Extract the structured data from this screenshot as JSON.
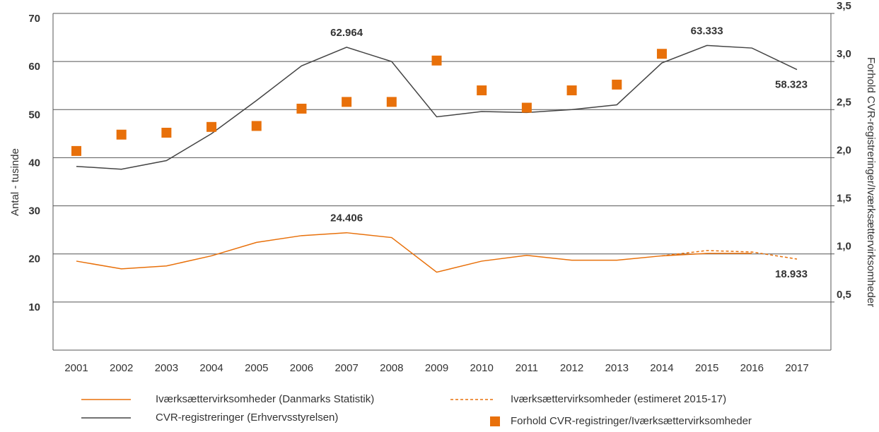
{
  "chart_data": {
    "type": "line",
    "categories": [
      "2001",
      "2002",
      "2003",
      "2004",
      "2005",
      "2006",
      "2007",
      "2008",
      "2009",
      "2010",
      "2011",
      "2012",
      "2013",
      "2014",
      "2015",
      "2016",
      "2017"
    ],
    "ylabel": "Antal - tusinde",
    "y2label": "Forhold CVR-registreringer/Iværksættervirksomheder",
    "ylim": [
      0,
      70
    ],
    "yticks": [
      10,
      20,
      30,
      40,
      50,
      60,
      70
    ],
    "y2lim": [
      0,
      3.5
    ],
    "y2ticks": [
      {
        "value": 0.5,
        "label": "0,5"
      },
      {
        "value": 1.0,
        "label": "1,0"
      },
      {
        "value": 1.5,
        "label": "1,5"
      },
      {
        "value": 2.0,
        "label": "2,0"
      },
      {
        "value": 2.5,
        "label": "2,5"
      },
      {
        "value": 3.0,
        "label": "3,0"
      },
      {
        "value": 3.5,
        "label": "3,5"
      }
    ],
    "grid": true,
    "series": [
      {
        "name": "Iværksættervirksomheder (Danmarks Statistik)",
        "color": "#e8700a",
        "style": "solid",
        "values": [
          18.5,
          16.9,
          17.5,
          19.6,
          22.4,
          23.8,
          24.406,
          23.4,
          16.2,
          18.5,
          19.7,
          18.7,
          18.7,
          19.6,
          20.1,
          20.1,
          null
        ],
        "value_labels": [
          null,
          null,
          null,
          null,
          null,
          null,
          "24.406",
          null,
          null,
          null,
          null,
          null,
          null,
          null,
          null,
          null,
          null
        ]
      },
      {
        "name": "CVR-registreringer (Erhvervsstyrelsen)",
        "color": "#444444",
        "style": "solid",
        "values": [
          38.2,
          37.6,
          39.4,
          45.0,
          51.9,
          59.1,
          62.964,
          60.0,
          48.5,
          49.6,
          49.4,
          50.0,
          51.0,
          59.7,
          63.333,
          62.8,
          58.323
        ],
        "value_labels": [
          null,
          null,
          null,
          null,
          null,
          null,
          "62.964",
          null,
          null,
          null,
          null,
          null,
          null,
          null,
          "63.333",
          null,
          "58.323"
        ]
      },
      {
        "name": "Iværksættervirksomheder (estimeret 2015-17)",
        "color": "#e8700a",
        "style": "dashed",
        "values": [
          null,
          null,
          null,
          null,
          null,
          null,
          null,
          null,
          null,
          null,
          null,
          null,
          null,
          19.6,
          20.7,
          20.4,
          18.933
        ],
        "value_labels": [
          null,
          null,
          null,
          null,
          null,
          null,
          null,
          null,
          null,
          null,
          null,
          null,
          null,
          null,
          null,
          null,
          "18.933"
        ]
      },
      {
        "name": "Forhold CVR-registringer/Iværksættervirksomheder",
        "color": "#e8700a",
        "style": "square",
        "axis": "y2",
        "values": [
          2.07,
          2.24,
          2.26,
          2.32,
          2.33,
          2.51,
          2.58,
          2.58,
          3.01,
          2.7,
          2.52,
          2.7,
          2.76,
          3.08,
          null,
          null,
          null
        ]
      }
    ]
  }
}
